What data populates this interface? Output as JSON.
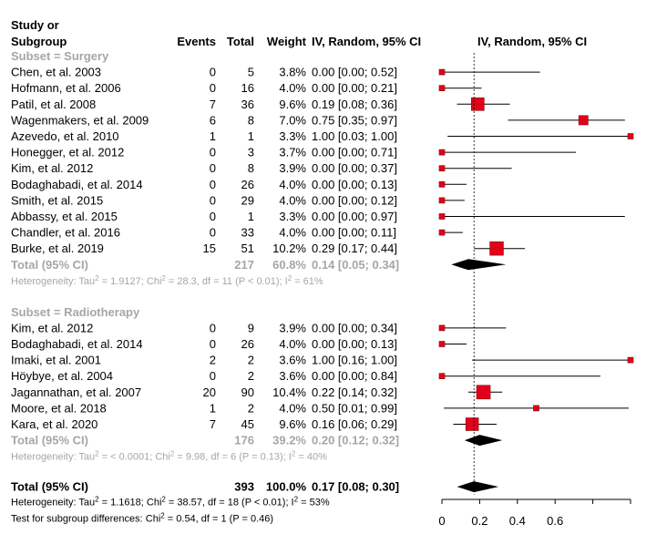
{
  "colors": {
    "text": "#000000",
    "subtotal_text": "#a6a6a6",
    "box_fill": "#e3001b",
    "diamond": "#000000",
    "ci_line": "#000000",
    "ref_line": "#000000"
  },
  "headers": {
    "study_line1": "Study or",
    "study_line2": "Subgroup",
    "events": "Events",
    "total": "Total",
    "weight": "Weight",
    "ci": "IV, Random, 95% CI",
    "plot": "IV, Random, 95% CI"
  },
  "chart_data": {
    "type": "forest",
    "xlim": [
      0,
      1
    ],
    "axis_ticks": [
      0,
      0.2,
      0.4,
      0.6,
      0.8,
      1
    ],
    "axis_tick_labels": [
      "0",
      "0.2",
      "0.4",
      "0.6",
      "",
      ""
    ],
    "reference_line": 0.17,
    "subgroups": [
      {
        "title": "Subset = Surgery",
        "studies": [
          {
            "study": "Chen, et al. 2003",
            "events": "0",
            "total": "5",
            "weight": "3.8%",
            "ci_text": "0.00 [0.00; 0.52]",
            "est": 0.0,
            "lo": 0.0,
            "hi": 0.52,
            "w": 3.8
          },
          {
            "study": "Hofmann, et al. 2006",
            "events": "0",
            "total": "16",
            "weight": "4.0%",
            "ci_text": "0.00 [0.00; 0.21]",
            "est": 0.0,
            "lo": 0.0,
            "hi": 0.21,
            "w": 4.0
          },
          {
            "study": "Patil, et al. 2008",
            "events": "7",
            "total": "36",
            "weight": "9.6%",
            "ci_text": "0.19 [0.08; 0.36]",
            "est": 0.19,
            "lo": 0.08,
            "hi": 0.36,
            "w": 9.6
          },
          {
            "study": "Wagenmakers, et al. 2009",
            "events": "6",
            "total": "8",
            "weight": "7.0%",
            "ci_text": "0.75 [0.35; 0.97]",
            "est": 0.75,
            "lo": 0.35,
            "hi": 0.97,
            "w": 7.0
          },
          {
            "study": "Azevedo, et al. 2010",
            "events": "1",
            "total": "1",
            "weight": "3.3%",
            "ci_text": "1.00 [0.03; 1.00]",
            "est": 1.0,
            "lo": 0.03,
            "hi": 1.0,
            "w": 3.3
          },
          {
            "study": "Honegger, et al. 2012",
            "events": "0",
            "total": "3",
            "weight": "3.7%",
            "ci_text": "0.00 [0.00; 0.71]",
            "est": 0.0,
            "lo": 0.0,
            "hi": 0.71,
            "w": 3.7
          },
          {
            "study": "Kim, et al. 2012",
            "events": "0",
            "total": "8",
            "weight": "3.9%",
            "ci_text": "0.00 [0.00; 0.37]",
            "est": 0.0,
            "lo": 0.0,
            "hi": 0.37,
            "w": 3.9
          },
          {
            "study": "Bodaghabadi, et al. 2014",
            "events": "0",
            "total": "26",
            "weight": "4.0%",
            "ci_text": "0.00 [0.00; 0.13]",
            "est": 0.0,
            "lo": 0.0,
            "hi": 0.13,
            "w": 4.0
          },
          {
            "study": "Smith, et al. 2015",
            "events": "0",
            "total": "29",
            "weight": "4.0%",
            "ci_text": "0.00 [0.00; 0.12]",
            "est": 0.0,
            "lo": 0.0,
            "hi": 0.12,
            "w": 4.0
          },
          {
            "study": "Abbassy, et al. 2015",
            "events": "0",
            "total": "1",
            "weight": "3.3%",
            "ci_text": "0.00 [0.00; 0.97]",
            "est": 0.0,
            "lo": 0.0,
            "hi": 0.97,
            "w": 3.3
          },
          {
            "study": "Chandler, et al. 2016",
            "events": "0",
            "total": "33",
            "weight": "4.0%",
            "ci_text": "0.00 [0.00; 0.11]",
            "est": 0.0,
            "lo": 0.0,
            "hi": 0.11,
            "w": 4.0
          },
          {
            "study": "Burke, et al. 2019",
            "events": "15",
            "total": "51",
            "weight": "10.2%",
            "ci_text": "0.29 [0.17; 0.44]",
            "est": 0.29,
            "lo": 0.17,
            "hi": 0.44,
            "w": 10.2
          }
        ],
        "subtotal": {
          "label": "Total (95% CI)",
          "total": "217",
          "weight": "60.8%",
          "ci_text": "0.14 [0.05; 0.34]",
          "est": 0.14,
          "lo": 0.05,
          "hi": 0.34
        },
        "heterogeneity": "Heterogeneity: Tau² = 1.9127; Chi² = 28.3, df = 11 (P < 0.01); I² = 61%"
      },
      {
        "title": "Subset = Radiotherapy",
        "studies": [
          {
            "study": "Kim, et al. 2012",
            "events": "0",
            "total": "9",
            "weight": "3.9%",
            "ci_text": "0.00 [0.00; 0.34]",
            "est": 0.0,
            "lo": 0.0,
            "hi": 0.34,
            "w": 3.9
          },
          {
            "study": "Bodaghabadi, et al. 2014",
            "events": "0",
            "total": "26",
            "weight": "4.0%",
            "ci_text": "0.00 [0.00; 0.13]",
            "est": 0.0,
            "lo": 0.0,
            "hi": 0.13,
            "w": 4.0
          },
          {
            "study": "Imaki, et al. 2001",
            "events": "2",
            "total": "2",
            "weight": "3.6%",
            "ci_text": "1.00 [0.16; 1.00]",
            "est": 1.0,
            "lo": 0.16,
            "hi": 1.0,
            "w": 3.6
          },
          {
            "study": "Höybye, et al. 2004",
            "events": "0",
            "total": "2",
            "weight": "3.6%",
            "ci_text": "0.00 [0.00; 0.84]",
            "est": 0.0,
            "lo": 0.0,
            "hi": 0.84,
            "w": 3.6
          },
          {
            "study": "Jagannathan, et al. 2007",
            "events": "20",
            "total": "90",
            "weight": "10.4%",
            "ci_text": "0.22 [0.14; 0.32]",
            "est": 0.22,
            "lo": 0.14,
            "hi": 0.32,
            "w": 10.4
          },
          {
            "study": "Moore, et al. 2018",
            "events": "1",
            "total": "2",
            "weight": "4.0%",
            "ci_text": "0.50 [0.01; 0.99]",
            "est": 0.5,
            "lo": 0.01,
            "hi": 0.99,
            "w": 4.0
          },
          {
            "study": "Kara, et al. 2020",
            "events": "7",
            "total": "45",
            "weight": "9.6%",
            "ci_text": "0.16 [0.06; 0.29]",
            "est": 0.16,
            "lo": 0.06,
            "hi": 0.29,
            "w": 9.6
          }
        ],
        "subtotal": {
          "label": "Total (95% CI)",
          "total": "176",
          "weight": "39.2%",
          "ci_text": "0.20 [0.12; 0.32]",
          "est": 0.2,
          "lo": 0.12,
          "hi": 0.32
        },
        "heterogeneity": "Heterogeneity: Tau² = < 0.0001; Chi² = 9.98, df = 6 (P = 0.13); I² = 40%"
      }
    ],
    "overall": {
      "label": "Total (95% CI)",
      "total": "393",
      "weight": "100.0%",
      "ci_text": "0.17 [0.08; 0.30]",
      "est": 0.17,
      "lo": 0.08,
      "hi": 0.3,
      "heterogeneity": "Heterogeneity: Tau² = 1.1618; Chi² = 38.57, df = 18 (P < 0.01); I² = 53%",
      "subgroup_test": "Test for subgroup differences: Chi² = 0.54, df = 1 (P = 0.46)"
    }
  }
}
